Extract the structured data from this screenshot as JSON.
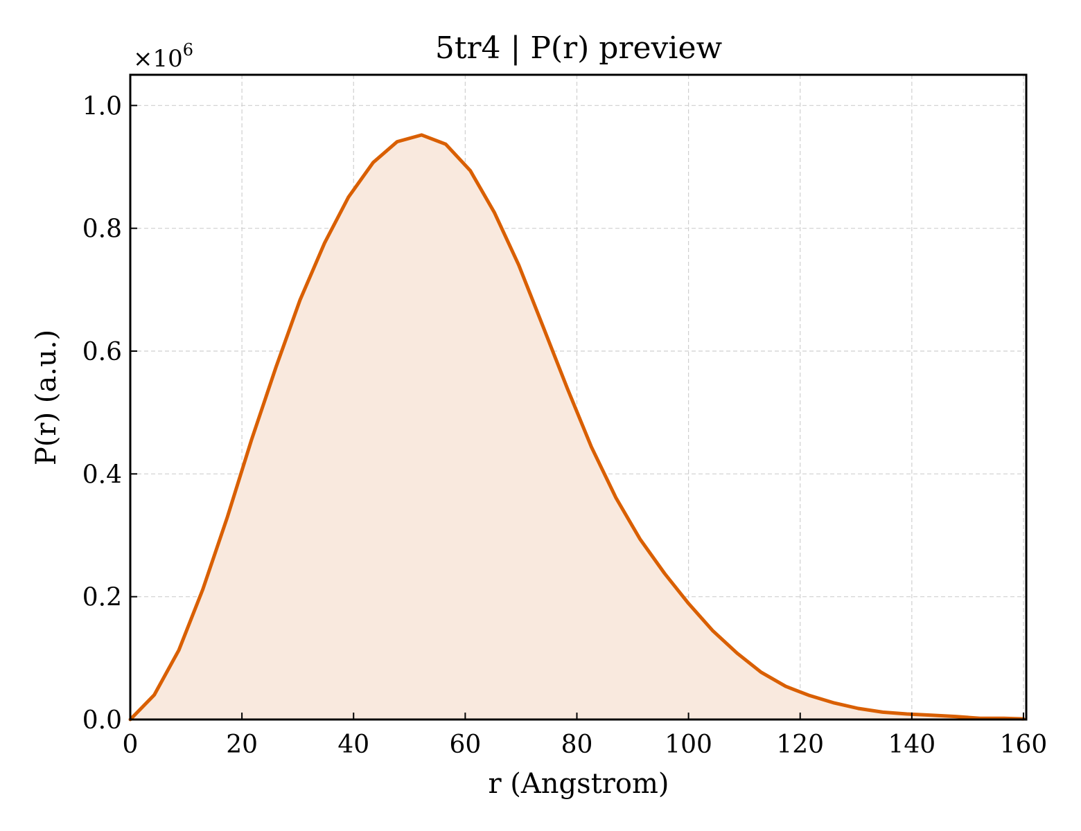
{
  "chart_data": {
    "type": "area",
    "title": "5tr4 | P(r) preview",
    "xlabel": "r (Angstrom)",
    "ylabel": "P(r) (a.u.)",
    "y_multiplier_label": "×10",
    "y_multiplier_exponent": "6",
    "xlim": [
      0,
      160.5
    ],
    "ylim": [
      0,
      1.05
    ],
    "y_scale_factor": 1000000,
    "x_ticks": [
      0,
      20,
      40,
      60,
      80,
      100,
      120,
      140,
      160
    ],
    "x_tick_labels": [
      "0",
      "20",
      "40",
      "60",
      "80",
      "100",
      "120",
      "140",
      "160"
    ],
    "y_ticks": [
      0,
      0.2,
      0.4,
      0.6,
      0.8,
      1.0
    ],
    "y_tick_labels": [
      "0.0",
      "0.2",
      "0.4",
      "0.6",
      "0.8",
      "1.0"
    ],
    "grid": true,
    "line_color": "#d95f02",
    "fill_color": "#f9e9de",
    "series": [
      {
        "x": [
          0,
          4.3,
          8.7,
          13.0,
          17.4,
          21.7,
          26.1,
          30.4,
          34.8,
          39.1,
          43.5,
          47.8,
          52.2,
          56.5,
          60.9,
          65.2,
          69.6,
          73.9,
          78.3,
          82.6,
          87.0,
          91.3,
          95.7,
          100.0,
          104.3,
          108.7,
          113.0,
          117.4,
          121.7,
          126.1,
          130.4,
          134.8,
          139.1,
          143.5,
          147.8,
          152.2,
          156.5,
          160.0
        ],
        "y": [
          0.0,
          0.04,
          0.113,
          0.212,
          0.33,
          0.455,
          0.574,
          0.683,
          0.776,
          0.851,
          0.907,
          0.941,
          0.952,
          0.937,
          0.894,
          0.826,
          0.74,
          0.641,
          0.539,
          0.444,
          0.361,
          0.294,
          0.238,
          0.189,
          0.145,
          0.108,
          0.077,
          0.054,
          0.039,
          0.027,
          0.018,
          0.012,
          0.009,
          0.007,
          0.005,
          0.002,
          0.002,
          0.001
        ]
      }
    ]
  }
}
